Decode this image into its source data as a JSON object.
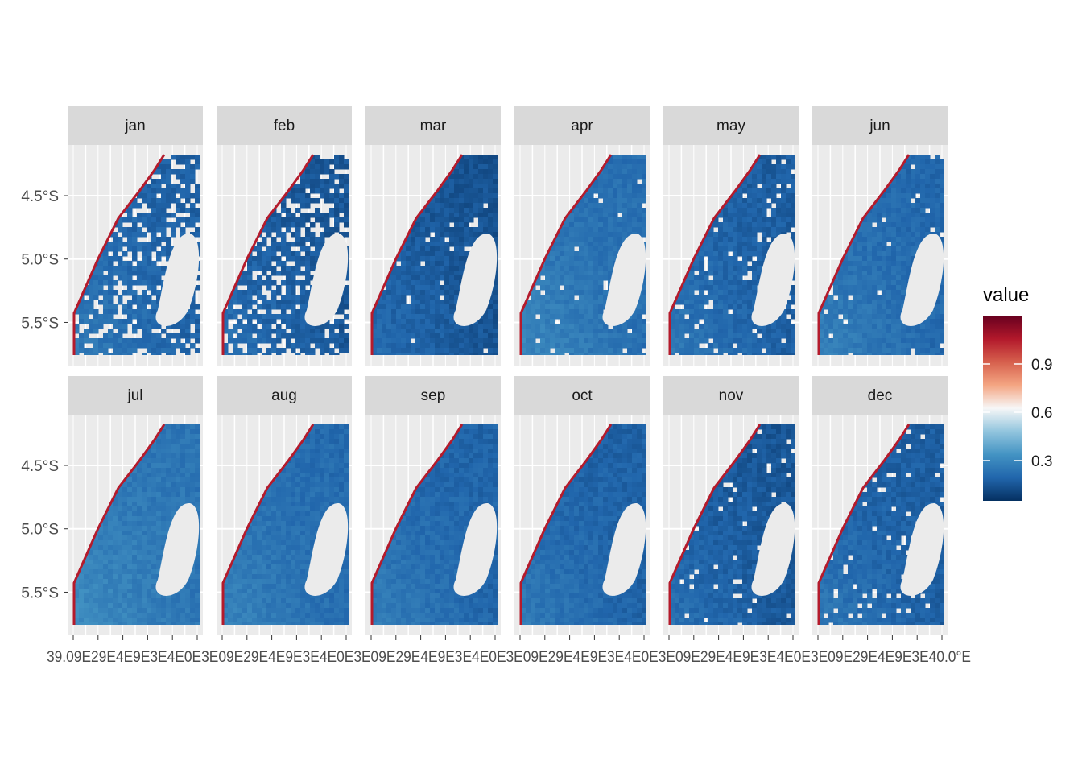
{
  "chart_data": {
    "type": "heatmap",
    "layout": "faceted map grid, 2 rows x 6 columns",
    "facets": [
      "jan",
      "feb",
      "mar",
      "apr",
      "may",
      "jun",
      "jul",
      "aug",
      "sep",
      "oct",
      "nov",
      "dec"
    ],
    "y_axis": {
      "ticks": [
        {
          "label": "4.5°S",
          "value": -4.5
        },
        {
          "label": "5.0°S",
          "value": -5.0
        },
        {
          "label": "5.5°S",
          "value": -5.5
        }
      ],
      "lim": [
        -5.84,
        -4.1
      ]
    },
    "x_axis": {
      "note": "overlapping tick labels as rendered in original",
      "label_text": "39.09E29E4E9E3E4E0E3E09E29E4E9E3E4E0E3E09E29E4E9E3E4E0E3E09E29E4E9E3E4E0E3E09E29E4E9E3E4E0E3E09E29E4E9E3E40.0°E",
      "lim": [
        39.0,
        40.0
      ]
    },
    "grid": true,
    "legend": {
      "title": "value",
      "position": "right",
      "breaks": [
        "0.9",
        "0.6",
        "0.3"
      ],
      "break_values": [
        0.9,
        0.6,
        0.3
      ],
      "range": [
        0.05,
        1.2
      ],
      "colors": [
        "#053061",
        "#2166ac",
        "#4393c3",
        "#92c5de",
        "#f7f7f7",
        "#f4a582",
        "#d6604d",
        "#b2182b",
        "#67001f"
      ]
    },
    "panel_summary": [
      {
        "month": "jan",
        "base_value": 0.18,
        "missing": "heavy"
      },
      {
        "month": "feb",
        "base_value": 0.15,
        "missing": "heavy"
      },
      {
        "month": "mar",
        "base_value": 0.14,
        "missing": "light"
      },
      {
        "month": "apr",
        "base_value": 0.22,
        "missing": "light"
      },
      {
        "month": "may",
        "base_value": 0.17,
        "missing": "medium"
      },
      {
        "month": "jun",
        "base_value": 0.2,
        "missing": "light"
      },
      {
        "month": "jul",
        "base_value": 0.24,
        "missing": "none"
      },
      {
        "month": "aug",
        "base_value": 0.21,
        "missing": "none"
      },
      {
        "month": "sep",
        "base_value": 0.19,
        "missing": "none"
      },
      {
        "month": "oct",
        "base_value": 0.18,
        "missing": "none"
      },
      {
        "month": "nov",
        "base_value": 0.15,
        "missing": "light"
      },
      {
        "month": "dec",
        "base_value": 0.17,
        "missing": "medium"
      }
    ]
  }
}
